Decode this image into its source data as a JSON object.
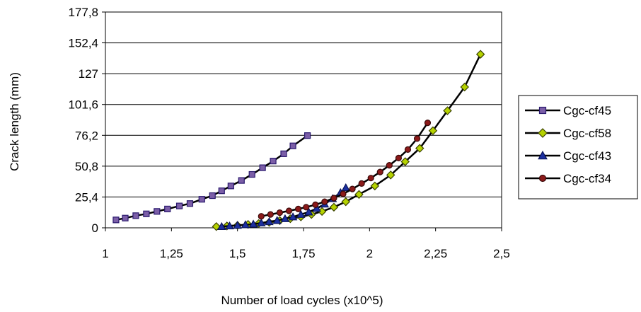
{
  "chart_data": {
    "type": "line",
    "xlabel": "Number of load cycles (x10^5)",
    "ylabel": "Crack length (mm)",
    "xlim": [
      1,
      2.5
    ],
    "ylim": [
      0,
      177.8
    ],
    "x_ticks": [
      1,
      1.25,
      1.5,
      1.75,
      2,
      2.25,
      2.5
    ],
    "x_tick_labels": [
      "1",
      "1,25",
      "1,5",
      "1,75",
      "2",
      "2,25",
      "2,5"
    ],
    "y_ticks": [
      0,
      25.4,
      50.8,
      76.2,
      101.6,
      127,
      152.4,
      177.8
    ],
    "y_tick_labels": [
      "0",
      "25,4",
      "50,8",
      "76,2",
      "101,6",
      "127",
      "152,4",
      "177,8"
    ],
    "grid": "horizontal",
    "legend_position": "right",
    "series": [
      {
        "name": "Cgc-cf45",
        "marker": "square",
        "color": "#000000",
        "marker_fill": "#7b5ea7",
        "marker_stroke": "#2a1a6e",
        "x": [
          1.04,
          1.075,
          1.115,
          1.155,
          1.195,
          1.235,
          1.28,
          1.32,
          1.365,
          1.405,
          1.44,
          1.475,
          1.515,
          1.555,
          1.595,
          1.635,
          1.675,
          1.71,
          1.765
        ],
        "y": [
          6.5,
          8,
          10,
          11.5,
          13.5,
          15.5,
          18,
          20,
          23.5,
          26.5,
          30.5,
          34.5,
          39,
          44,
          49.5,
          55,
          61,
          67.5,
          76
        ]
      },
      {
        "name": "Cgc-cf58",
        "marker": "diamond",
        "color": "#000000",
        "marker_fill": "#b5d200",
        "marker_stroke": "#3c4400",
        "x": [
          1.42,
          1.46,
          1.5,
          1.54,
          1.58,
          1.62,
          1.66,
          1.7,
          1.74,
          1.78,
          1.82,
          1.865,
          1.91,
          1.96,
          2.02,
          2.08,
          2.135,
          2.19,
          2.24,
          2.295,
          2.36,
          2.42
        ],
        "y": [
          1,
          1.5,
          2,
          2.8,
          3.5,
          4.5,
          6,
          7.5,
          9,
          11,
          13.5,
          17,
          21.5,
          27.5,
          34.5,
          43.5,
          54.5,
          65.5,
          80,
          96.5,
          116,
          143
        ]
      },
      {
        "name": "Cgc-cf43",
        "marker": "triangle",
        "color": "#000000",
        "marker_fill": "#1c2fa0",
        "marker_stroke": "#0a145a",
        "x": [
          1.44,
          1.47,
          1.5,
          1.53,
          1.56,
          1.59,
          1.62,
          1.65,
          1.68,
          1.71,
          1.74,
          1.77,
          1.8,
          1.83,
          1.86,
          1.89,
          1.91
        ],
        "y": [
          1,
          1.5,
          2,
          2.5,
          3,
          4,
          5,
          6,
          7.5,
          9,
          11,
          13,
          16,
          19.5,
          24,
          29,
          33
        ]
      },
      {
        "name": "Cgc-cf34",
        "marker": "circle",
        "color": "#000000",
        "marker_fill": "#8b1a1a",
        "marker_stroke": "#3a0808",
        "x": [
          1.59,
          1.625,
          1.66,
          1.695,
          1.73,
          1.76,
          1.795,
          1.83,
          1.865,
          1.9,
          1.935,
          1.97,
          2.005,
          2.04,
          2.075,
          2.11,
          2.145,
          2.18,
          2.22
        ],
        "y": [
          9.5,
          11,
          12.5,
          14,
          15.5,
          17,
          19,
          21.5,
          24.5,
          28,
          32,
          36.5,
          41,
          46,
          51.5,
          57.5,
          64.5,
          73.5,
          86.5
        ]
      }
    ]
  }
}
